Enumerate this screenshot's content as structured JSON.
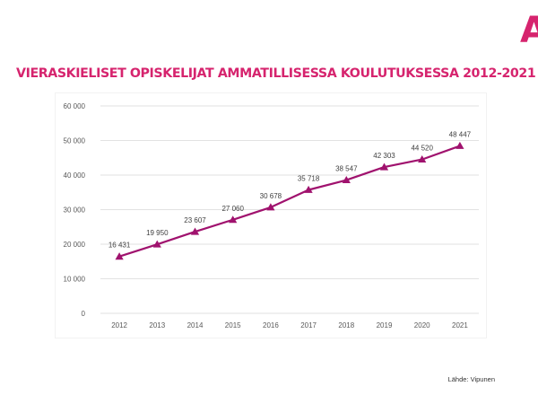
{
  "slide": {
    "logo_glyph": "A",
    "title": "VIERASKIELISET OPISKELIJAT AMMATILLISESSA KOULUTUKSESSA 2012-2021",
    "source": "Lähde: Vipunen"
  },
  "colors": {
    "title": "#d6246e",
    "series": "#a0126e",
    "gridline": "#d9d9d9",
    "axis_text": "#595959"
  },
  "chart_data": {
    "type": "line",
    "title": "",
    "xlabel": "",
    "ylabel": "",
    "categories": [
      "2012",
      "2013",
      "2014",
      "2015",
      "2016",
      "2017",
      "2018",
      "2019",
      "2020",
      "2021"
    ],
    "series": [
      {
        "values": [
          16431,
          19950,
          23607,
          27060,
          30678,
          35718,
          38547,
          42303,
          44520,
          48447
        ],
        "data_labels": [
          "16 431",
          "19 950",
          "23 607",
          "27 060",
          "30 678",
          "35 718",
          "38 547",
          "42 303",
          "44 520",
          "48 447"
        ],
        "marker": "triangle"
      }
    ],
    "ylim": [
      0,
      60000
    ],
    "yticks": [
      0,
      10000,
      20000,
      30000,
      40000,
      50000,
      60000
    ],
    "ytick_labels": [
      "0",
      "10 000",
      "20 000",
      "30 000",
      "40 000",
      "50 000",
      "60 000"
    ],
    "grid": true,
    "legend": "none"
  }
}
